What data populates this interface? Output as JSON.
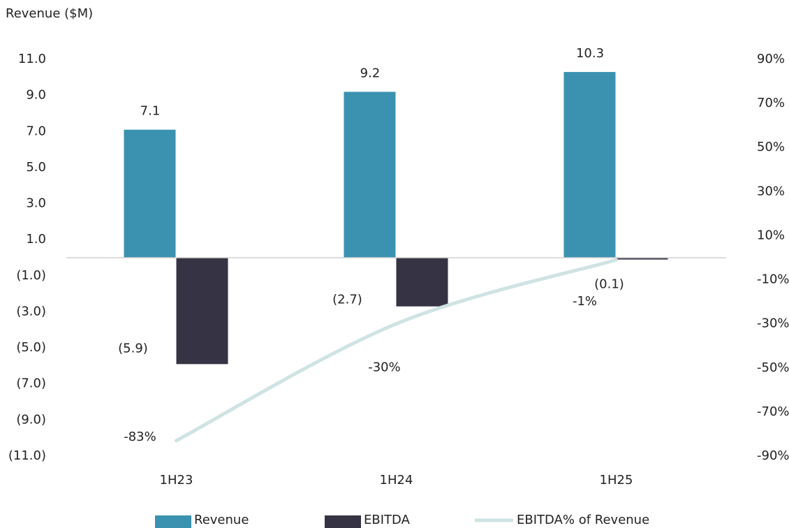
{
  "chart_data": {
    "type": "bar",
    "y_axis_label": "Revenue ($M)",
    "categories": [
      "1H23",
      "1H24",
      "1H25"
    ],
    "series": [
      {
        "name": "Revenue",
        "color": "#3a92b0",
        "values": [
          7.1,
          9.2,
          10.3
        ]
      },
      {
        "name": "EBITDA",
        "color": "#363444",
        "values": [
          -5.9,
          -2.7,
          -0.1
        ],
        "value_labels": [
          "(5.9)",
          "(2.7)",
          "(0.1)"
        ]
      },
      {
        "name": "EBITDA% of Revenue",
        "color": "#cfe3e3",
        "type": "line",
        "axis": "y2",
        "values": [
          -83,
          -30,
          -1
        ],
        "value_labels": [
          "-83%",
          "-30%",
          "-1%"
        ]
      }
    ],
    "ylim": [
      -11,
      11
    ],
    "yticks": [
      {
        "value": 11,
        "label": "11.0"
      },
      {
        "value": 9,
        "label": "9.0"
      },
      {
        "value": 7,
        "label": "7.0"
      },
      {
        "value": 5,
        "label": "5.0"
      },
      {
        "value": 3,
        "label": "3.0"
      },
      {
        "value": 1,
        "label": "1.0"
      },
      {
        "value": -1,
        "label": "(1.0)"
      },
      {
        "value": -3,
        "label": "(3.0)"
      },
      {
        "value": -5,
        "label": "(5.0)"
      },
      {
        "value": -7,
        "label": "(7.0)"
      },
      {
        "value": -9,
        "label": "(9.0)"
      },
      {
        "value": -11,
        "label": "(11.0)"
      }
    ],
    "y2lim": [
      -90,
      90
    ],
    "y2ticks": [
      {
        "value": 90,
        "label": "90%"
      },
      {
        "value": 70,
        "label": "70%"
      },
      {
        "value": 50,
        "label": "50%"
      },
      {
        "value": 30,
        "label": "30%"
      },
      {
        "value": 10,
        "label": "10%"
      },
      {
        "value": -10,
        "label": "-10%"
      },
      {
        "value": -30,
        "label": "-30%"
      },
      {
        "value": -50,
        "label": "-50%"
      },
      {
        "value": -70,
        "label": "-70%"
      },
      {
        "value": -90,
        "label": "-90%"
      }
    ],
    "grid": false,
    "legend": "bottom"
  }
}
